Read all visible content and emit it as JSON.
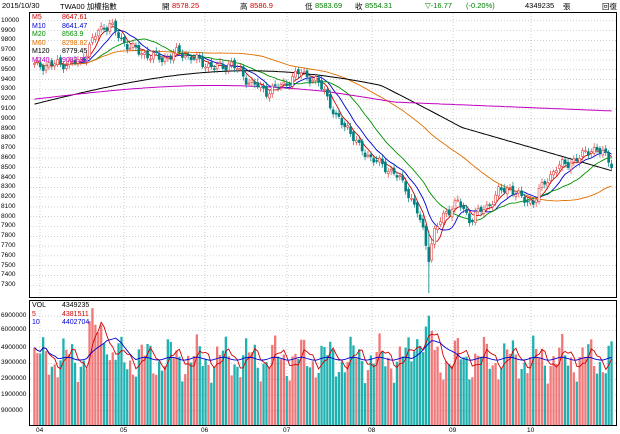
{
  "header": {
    "date": "2015/10/30",
    "index_name": "TWA00 加權指數",
    "open_label": "開",
    "open_value": "8578.25",
    "high_label": "高",
    "high_value": "8586.9",
    "low_label": "低",
    "low_value": "8583.69",
    "close_label": "收",
    "close_value": "8554.31",
    "change_value": "▽-16.77",
    "change_pct": "(-0.20%)",
    "volume_value": "4349235",
    "volume_unit": "張",
    "back_button": "回復"
  },
  "price_legend": [
    {
      "name": "M5",
      "value": "8647.61",
      "color": "#d00000"
    },
    {
      "name": "M10",
      "value": "8641.47",
      "color": "#0000d0"
    },
    {
      "name": "M20",
      "value": "8563.9",
      "color": "#009000"
    },
    {
      "name": "M60",
      "value": "8298.82",
      "color": "#e07000"
    },
    {
      "name": "M120",
      "value": "8779.45",
      "color": "#000000"
    },
    {
      "name": "M240",
      "value": "9082.33",
      "color": "#c000c0"
    }
  ],
  "volume_legend": [
    {
      "name": "VOL",
      "value": "4349235",
      "color": "#000000"
    },
    {
      "name": "5",
      "value": "4381511",
      "color": "#d00000"
    },
    {
      "name": "10",
      "value": "4402704",
      "color": "#0000d0"
    }
  ],
  "price_axis": [
    "10000",
    "9900",
    "9800",
    "9700",
    "9600",
    "9500",
    "9400",
    "9300",
    "9200",
    "9100",
    "9000",
    "8900",
    "8800",
    "8700",
    "8600",
    "8500",
    "8400",
    "8300",
    "8200",
    "8100",
    "8000",
    "7900",
    "7800",
    "7700",
    "7600",
    "7500",
    "7400",
    "7300"
  ],
  "volume_axis": [
    "6900000",
    "6000000",
    "4900000",
    "3900000",
    "2900000",
    "1900000",
    "900000"
  ],
  "months": [
    "04",
    "05",
    "06",
    "07",
    "08",
    "09",
    "10"
  ],
  "colors": {
    "up": "#f07878",
    "down": "#20b0b0",
    "grid": "#b0b0b0",
    "ma5": "#d00000",
    "ma10": "#0000d0",
    "ma20": "#009000",
    "ma60": "#e07000",
    "ma120": "#000000",
    "ma240": "#c000c0"
  }
}
